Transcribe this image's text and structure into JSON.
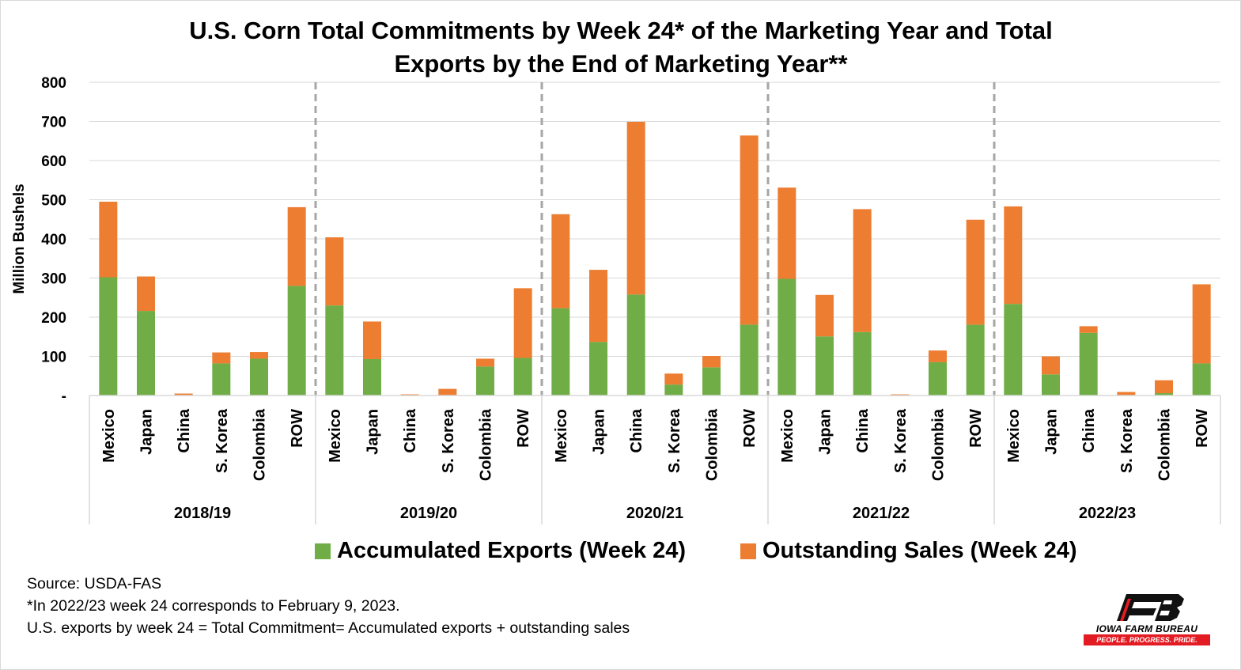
{
  "title_line1": "U.S. Corn Total Commitments  by Week 24* of the Marketing Year and Total",
  "title_line2": "Exports by the End of Marketing Year**",
  "notes": {
    "source": "Source: USDA-FAS",
    "note1": "*In 2022/23 week 24 corresponds to February 9, 2023.",
    "note2": "U.S. exports by week 24 = Total Commitment= Accumulated exports + outstanding sales"
  },
  "logo": {
    "name": "IOWA FARM BUREAU",
    "tagline": "PEOPLE. PROGRESS. PRIDE.",
    "icon": "fb-logo-icon"
  },
  "colors": {
    "exports": "#70ad47",
    "outstanding": "#ed7d31",
    "grid": "#d9d9d9",
    "divider": "#a6a6a6",
    "logo_red": "#e31b23"
  },
  "chart_data": {
    "type": "bar",
    "stacked": true,
    "title": "U.S. Corn Total Commitments  by Week 24* of the Marketing Year and Total Exports by the End of Marketing Year**",
    "ylabel": "Million Bushels",
    "xlabel": "",
    "ylim": [
      0,
      800
    ],
    "yticks": [
      0,
      100,
      200,
      300,
      400,
      500,
      600,
      700,
      800
    ],
    "ytick_labels": [
      "-",
      "100",
      "200",
      "300",
      "400",
      "500",
      "600",
      "700",
      "800"
    ],
    "grid": true,
    "legend_position": "bottom",
    "groups": [
      {
        "label": "2018/19",
        "categories": [
          "Mexico",
          "Japan",
          "China",
          "S. Korea",
          "Colombia",
          "ROW"
        ]
      },
      {
        "label": "2019/20",
        "categories": [
          "Mexico",
          "Japan",
          "China",
          "S. Korea",
          "Colombia",
          "ROW"
        ]
      },
      {
        "label": "2020/21",
        "categories": [
          "Mexico",
          "Japan",
          "China",
          "S. Korea",
          "Colombia",
          "ROW"
        ]
      },
      {
        "label": "2021/22",
        "categories": [
          "Mexico",
          "Japan",
          "China",
          "S. Korea",
          "Colombia",
          "ROW"
        ]
      },
      {
        "label": "2022/23",
        "categories": [
          "Mexico",
          "Japan",
          "China",
          "S. Korea",
          "Colombia",
          "ROW"
        ]
      }
    ],
    "series": [
      {
        "name": "Accumulated Exports (Week 24)",
        "color": "#70ad47",
        "values": [
          [
            302,
            216,
            0,
            82,
            94,
            280
          ],
          [
            230,
            93,
            0,
            0,
            74,
            96
          ],
          [
            223,
            137,
            258,
            28,
            72,
            181
          ],
          [
            298,
            151,
            162,
            0,
            85,
            181
          ],
          [
            234,
            54,
            160,
            0,
            6,
            82
          ]
        ]
      },
      {
        "name": "Outstanding Sales (Week 24)",
        "color": "#ed7d31",
        "values": [
          [
            193,
            88,
            5,
            28,
            17,
            201
          ],
          [
            174,
            96,
            3,
            17,
            20,
            178
          ],
          [
            240,
            184,
            441,
            28,
            29,
            483
          ],
          [
            233,
            106,
            314,
            3,
            30,
            268
          ],
          [
            249,
            46,
            17,
            9,
            33,
            202
          ]
        ]
      }
    ]
  }
}
